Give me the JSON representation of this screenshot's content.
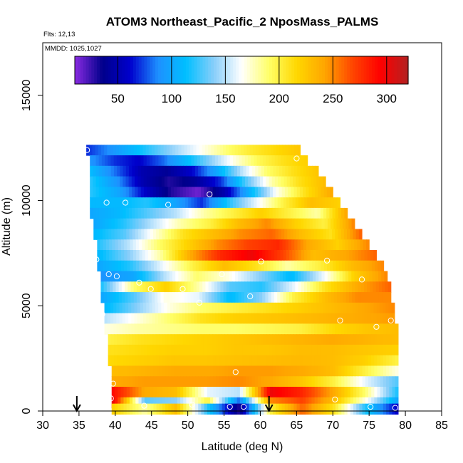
{
  "chart_data": {
    "type": "heatmap",
    "title": "ATOM3 Northeast_Pacific_2 NposMass_PALMS",
    "flights_label": "Flts: 12,13",
    "date_label": "MMDD: 1025,1027",
    "xlabel": "Latitude (deg N)",
    "ylabel": "Altitude (m)",
    "xlim": [
      30,
      85
    ],
    "ylim": [
      0,
      17500
    ],
    "x_ticks": [
      30,
      35,
      40,
      45,
      50,
      55,
      60,
      65,
      70,
      75,
      80,
      85
    ],
    "y_ticks": [
      0,
      5000,
      10000,
      15000
    ],
    "colorbar": {
      "range": [
        10,
        320
      ],
      "ticks": [
        50,
        100,
        150,
        200,
        250,
        300
      ],
      "colors": [
        "#8a2be2",
        "#00008b",
        "#0000cd",
        "#1e90ff",
        "#00bfff",
        "#87cefa",
        "#ffffff",
        "#ffff66",
        "#ffd700",
        "#ffa500",
        "#ff4500",
        "#ff0000",
        "#b22222"
      ]
    },
    "value_unit_note": "NposMass",
    "rows": [
      {
        "alt": 12400,
        "lat_min": 36.0,
        "lat_max": 65.5,
        "values": [
          70,
          90,
          110,
          130,
          150,
          170,
          190,
          205,
          215,
          225
        ]
      },
      {
        "alt": 11900,
        "lat_min": 36.5,
        "lat_max": 66.5,
        "values": [
          90,
          70,
          60,
          80,
          110,
          140,
          170,
          195,
          210,
          220
        ]
      },
      {
        "alt": 11400,
        "lat_min": 36.5,
        "lat_max": 68.0,
        "values": [
          110,
          80,
          50,
          40,
          60,
          100,
          150,
          190,
          210,
          225
        ]
      },
      {
        "alt": 10900,
        "lat_min": 36.5,
        "lat_max": 69.0,
        "values": [
          120,
          90,
          50,
          30,
          40,
          70,
          130,
          180,
          210,
          230
        ]
      },
      {
        "alt": 10400,
        "lat_min": 36.5,
        "lat_max": 70.0,
        "values": [
          120,
          100,
          60,
          30,
          15,
          50,
          110,
          170,
          210,
          240
        ]
      },
      {
        "alt": 9900,
        "lat_min": 36.5,
        "lat_max": 71.0,
        "values": [
          110,
          110,
          120,
          100,
          70,
          120,
          160,
          200,
          230,
          220
        ]
      },
      {
        "alt": 9400,
        "lat_min": 36.5,
        "lat_max": 72.0,
        "values": [
          100,
          110,
          130,
          150,
          180,
          200,
          220,
          200,
          180,
          240
        ]
      },
      {
        "alt": 8900,
        "lat_min": 37.0,
        "lat_max": 73.0,
        "values": [
          100,
          120,
          150,
          180,
          200,
          230,
          250,
          220,
          200,
          250
        ]
      },
      {
        "alt": 8400,
        "lat_min": 37.0,
        "lat_max": 74.0,
        "values": [
          110,
          130,
          170,
          210,
          230,
          250,
          260,
          230,
          210,
          260
        ]
      },
      {
        "alt": 7900,
        "lat_min": 37.5,
        "lat_max": 75.0,
        "values": [
          120,
          150,
          190,
          220,
          250,
          270,
          280,
          240,
          220,
          250
        ]
      },
      {
        "alt": 7400,
        "lat_min": 37.5,
        "lat_max": 76.0,
        "values": [
          110,
          140,
          180,
          240,
          280,
          300,
          270,
          230,
          240,
          260
        ]
      },
      {
        "alt": 6900,
        "lat_min": 37.5,
        "lat_max": 77.0,
        "values": [
          100,
          120,
          160,
          200,
          230,
          210,
          180,
          200,
          230,
          250
        ]
      },
      {
        "alt": 6400,
        "lat_min": 38.0,
        "lat_max": 77.5,
        "values": [
          90,
          100,
          150,
          190,
          170,
          140,
          110,
          160,
          220,
          250
        ]
      },
      {
        "alt": 5900,
        "lat_min": 38.0,
        "lat_max": 78.0,
        "values": [
          120,
          190,
          220,
          180,
          130,
          120,
          160,
          210,
          240,
          260
        ]
      },
      {
        "alt": 5400,
        "lat_min": 38.0,
        "lat_max": 78.0,
        "values": [
          100,
          130,
          170,
          160,
          110,
          140,
          200,
          230,
          250,
          250
        ]
      },
      {
        "alt": 4900,
        "lat_min": 38.5,
        "lat_max": 78.5,
        "values": [
          110,
          140,
          170,
          190,
          200,
          210,
          220,
          230,
          240,
          250
        ]
      },
      {
        "alt": 4400,
        "lat_min": 38.5,
        "lat_max": 78.5,
        "values": [
          150,
          170,
          190,
          210,
          220,
          225,
          230,
          235,
          240,
          245
        ]
      },
      {
        "alt": 3900,
        "lat_min": 38.5,
        "lat_max": 79.0,
        "values": [
          170,
          180,
          185,
          190,
          190,
          195,
          200,
          215,
          225,
          230
        ]
      },
      {
        "alt": 3400,
        "lat_min": 39.0,
        "lat_max": 79.0,
        "values": [
          200,
          210,
          215,
          220,
          225,
          230,
          235,
          240,
          235,
          230
        ]
      },
      {
        "alt": 2900,
        "lat_min": 39.0,
        "lat_max": 79.0,
        "values": [
          210,
          215,
          220,
          220,
          225,
          225,
          230,
          230,
          225,
          220
        ]
      },
      {
        "alt": 2400,
        "lat_min": 39.0,
        "lat_max": 79.0,
        "values": [
          215,
          220,
          225,
          225,
          228,
          230,
          232,
          230,
          220,
          200
        ]
      },
      {
        "alt": 1900,
        "lat_min": 39.5,
        "lat_max": 79.0,
        "values": [
          230,
          235,
          240,
          240,
          245,
          245,
          240,
          230,
          200,
          170
        ]
      },
      {
        "alt": 1400,
        "lat_min": 39.5,
        "lat_max": 79.0,
        "values": [
          240,
          245,
          245,
          245,
          250,
          240,
          225,
          200,
          160,
          130
        ]
      },
      {
        "alt": 900,
        "lat_min": 39.5,
        "lat_max": 79.0,
        "values": [
          290,
          240,
          230,
          160,
          150,
          300,
          280,
          240,
          190,
          120
        ]
      },
      {
        "alt": 400,
        "lat_min": 39.5,
        "lat_max": 79.0,
        "values": [
          300,
          130,
          140,
          200,
          80,
          250,
          270,
          230,
          170,
          100
        ]
      },
      {
        "alt": 100,
        "lat_min": 39.5,
        "lat_max": 79.0,
        "values": [
          220,
          180,
          230,
          120,
          30,
          200,
          260,
          210,
          120,
          60
        ]
      }
    ],
    "sample_points": [
      {
        "lat": 36.1,
        "alt": 12400
      },
      {
        "lat": 65.0,
        "alt": 12000
      },
      {
        "lat": 53.0,
        "alt": 10300
      },
      {
        "lat": 72.2,
        "alt": 10300
      },
      {
        "lat": 38.8,
        "alt": 9900
      },
      {
        "lat": 41.4,
        "alt": 9900
      },
      {
        "lat": 47.3,
        "alt": 9800
      },
      {
        "lat": 37.4,
        "alt": 7200
      },
      {
        "lat": 60.1,
        "alt": 7100
      },
      {
        "lat": 69.2,
        "alt": 7150
      },
      {
        "lat": 77.0,
        "alt": 7450
      },
      {
        "lat": 39.1,
        "alt": 6500
      },
      {
        "lat": 40.2,
        "alt": 6400
      },
      {
        "lat": 54.7,
        "alt": 6500
      },
      {
        "lat": 74.0,
        "alt": 6250
      },
      {
        "lat": 43.3,
        "alt": 6100
      },
      {
        "lat": 44.9,
        "alt": 5800
      },
      {
        "lat": 49.3,
        "alt": 5800
      },
      {
        "lat": 58.6,
        "alt": 5450
      },
      {
        "lat": 51.6,
        "alt": 5150
      },
      {
        "lat": 38.2,
        "alt": 4600
      },
      {
        "lat": 71.0,
        "alt": 4300
      },
      {
        "lat": 78.0,
        "alt": 4300
      },
      {
        "lat": 76.0,
        "alt": 4000
      },
      {
        "lat": 79.5,
        "alt": 3850
      },
      {
        "lat": 56.6,
        "alt": 1850
      },
      {
        "lat": 39.7,
        "alt": 1300
      },
      {
        "lat": 39.4,
        "alt": 600
      },
      {
        "lat": 70.3,
        "alt": 550
      },
      {
        "lat": 44.0,
        "alt": 250
      },
      {
        "lat": 50.6,
        "alt": 300
      },
      {
        "lat": 55.8,
        "alt": 200
      },
      {
        "lat": 57.7,
        "alt": 200
      },
      {
        "lat": 75.2,
        "alt": 200
      },
      {
        "lat": 78.6,
        "alt": 150
      }
    ],
    "arrows": [
      {
        "lat": 34.7
      },
      {
        "lat": 61.2
      }
    ]
  }
}
